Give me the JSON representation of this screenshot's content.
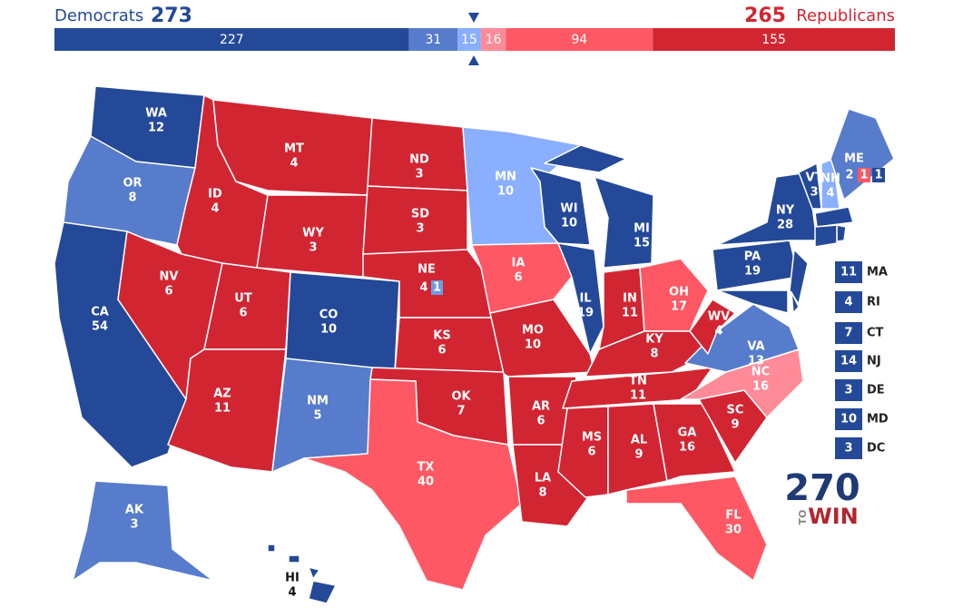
{
  "header": {
    "dem_label": "Democrats",
    "dem_total": 273,
    "rep_total": 265,
    "rep_label": "Republicans"
  },
  "bar": {
    "total": 538,
    "segments": [
      {
        "value": 227,
        "color": "#244999"
      },
      {
        "value": 31,
        "color": "#577ccc"
      },
      {
        "value": 15,
        "color": "#8aafff"
      },
      {
        "value": 16,
        "color": "#ff8b98"
      },
      {
        "value": 94,
        "color": "#ff5865"
      },
      {
        "value": 155,
        "color": "#d22532"
      }
    ]
  },
  "states": [
    {
      "abbr": "WA",
      "ev": 12,
      "color": "#244999"
    },
    {
      "abbr": "OR",
      "ev": 8,
      "color": "#577ccc"
    },
    {
      "abbr": "CA",
      "ev": 54,
      "color": "#244999"
    },
    {
      "abbr": "ID",
      "ev": 4,
      "color": "#d22532"
    },
    {
      "abbr": "NV",
      "ev": 6,
      "color": "#d22532"
    },
    {
      "abbr": "MT",
      "ev": 4,
      "color": "#d22532"
    },
    {
      "abbr": "WY",
      "ev": 3,
      "color": "#d22532"
    },
    {
      "abbr": "UT",
      "ev": 6,
      "color": "#d22532"
    },
    {
      "abbr": "AZ",
      "ev": 11,
      "color": "#d22532"
    },
    {
      "abbr": "CO",
      "ev": 10,
      "color": "#244999"
    },
    {
      "abbr": "NM",
      "ev": 5,
      "color": "#577ccc"
    },
    {
      "abbr": "ND",
      "ev": 3,
      "color": "#d22532"
    },
    {
      "abbr": "SD",
      "ev": 3,
      "color": "#d22532"
    },
    {
      "abbr": "NE",
      "ev": 4,
      "color": "#d22532",
      "district": {
        "ev": 1,
        "color": "#6f9be0"
      }
    },
    {
      "abbr": "KS",
      "ev": 6,
      "color": "#d22532"
    },
    {
      "abbr": "OK",
      "ev": 7,
      "color": "#d22532"
    },
    {
      "abbr": "TX",
      "ev": 40,
      "color": "#ff5865"
    },
    {
      "abbr": "MN",
      "ev": 10,
      "color": "#8aafff"
    },
    {
      "abbr": "IA",
      "ev": 6,
      "color": "#ff5865"
    },
    {
      "abbr": "MO",
      "ev": 10,
      "color": "#d22532"
    },
    {
      "abbr": "AR",
      "ev": 6,
      "color": "#d22532"
    },
    {
      "abbr": "LA",
      "ev": 8,
      "color": "#d22532"
    },
    {
      "abbr": "WI",
      "ev": 10,
      "color": "#244999"
    },
    {
      "abbr": "IL",
      "ev": 19,
      "color": "#244999"
    },
    {
      "abbr": "MI",
      "ev": 15,
      "color": "#244999"
    },
    {
      "abbr": "IN",
      "ev": 11,
      "color": "#d22532"
    },
    {
      "abbr": "OH",
      "ev": 17,
      "color": "#ff5865"
    },
    {
      "abbr": "KY",
      "ev": 8,
      "color": "#d22532"
    },
    {
      "abbr": "TN",
      "ev": 11,
      "color": "#d22532"
    },
    {
      "abbr": "MS",
      "ev": 6,
      "color": "#d22532"
    },
    {
      "abbr": "AL",
      "ev": 9,
      "color": "#d22532"
    },
    {
      "abbr": "GA",
      "ev": 16,
      "color": "#d22532"
    },
    {
      "abbr": "FL",
      "ev": 30,
      "color": "#ff5865"
    },
    {
      "abbr": "SC",
      "ev": 9,
      "color": "#d22532"
    },
    {
      "abbr": "NC",
      "ev": 16,
      "color": "#ff8b98"
    },
    {
      "abbr": "VA",
      "ev": 13,
      "color": "#577ccc"
    },
    {
      "abbr": "WV",
      "ev": 4,
      "color": "#d22532"
    },
    {
      "abbr": "PA",
      "ev": 19,
      "color": "#244999"
    },
    {
      "abbr": "NY",
      "ev": 28,
      "color": "#244999"
    },
    {
      "abbr": "VT",
      "ev": 3,
      "color": "#244999"
    },
    {
      "abbr": "NH",
      "ev": 4,
      "color": "#8aafff"
    },
    {
      "abbr": "ME",
      "ev": 2,
      "color": "#577ccc",
      "districts": [
        {
          "ev": 1,
          "color": "#ff5865"
        },
        {
          "ev": 1,
          "color": "#244999"
        }
      ]
    },
    {
      "abbr": "AK",
      "ev": 3,
      "color": "#577ccc"
    },
    {
      "abbr": "HI",
      "ev": 4,
      "color": "#244999"
    },
    {
      "abbr": "MA",
      "ev": 11,
      "color": "#244999"
    },
    {
      "abbr": "RI",
      "ev": 4,
      "color": "#244999"
    },
    {
      "abbr": "CT",
      "ev": 7,
      "color": "#244999"
    },
    {
      "abbr": "NJ",
      "ev": 14,
      "color": "#244999"
    },
    {
      "abbr": "DE",
      "ev": 3,
      "color": "#244999"
    },
    {
      "abbr": "MD",
      "ev": 10,
      "color": "#244999"
    },
    {
      "abbr": "DC",
      "ev": 3,
      "color": "#244999"
    }
  ],
  "logo": {
    "number": "270",
    "to": "TO",
    "win": "WIN"
  }
}
